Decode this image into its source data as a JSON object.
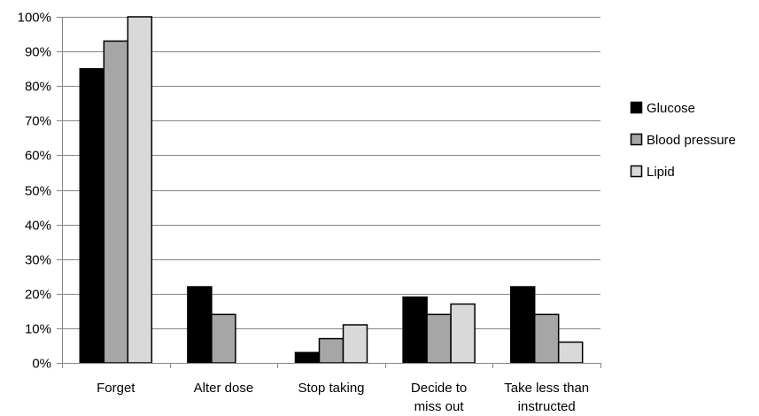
{
  "chart_data": {
    "type": "bar",
    "title": "",
    "xlabel": "",
    "ylabel": "",
    "categories": [
      [
        "Forget"
      ],
      [
        "Alter dose"
      ],
      [
        "Stop taking"
      ],
      [
        "Decide to",
        "miss out"
      ],
      [
        "Take less than",
        "instructed"
      ]
    ],
    "series": [
      {
        "name": "Glucose",
        "color": "#000000",
        "values": [
          85,
          22,
          3,
          19,
          22
        ]
      },
      {
        "name": "Blood pressure",
        "color": "#a6a6a6",
        "values": [
          93,
          14,
          7,
          14,
          14
        ]
      },
      {
        "name": "Lipid",
        "color": "#d9d9d9",
        "values": [
          100,
          0,
          11,
          17,
          6
        ]
      }
    ],
    "ylim": [
      0,
      100
    ],
    "yticks": [
      0,
      10,
      20,
      30,
      40,
      50,
      60,
      70,
      80,
      90,
      100
    ],
    "ytick_labels": [
      "0%",
      "10%",
      "20%",
      "30%",
      "40%",
      "50%",
      "60%",
      "70%",
      "80%",
      "90%",
      "100%"
    ],
    "grid": true,
    "legend_position": "right"
  }
}
